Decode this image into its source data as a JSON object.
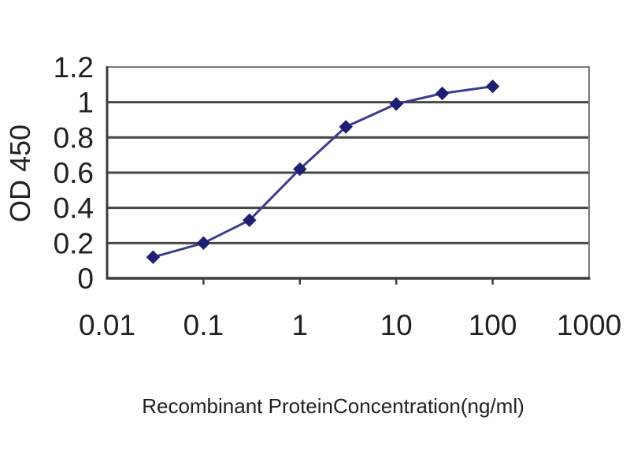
{
  "chart_data": {
    "type": "line",
    "title": "",
    "xlabel": "Recombinant ProteinConcentration(ng/ml)",
    "ylabel": "OD 450",
    "x_scale": "log",
    "xlim": [
      0.01,
      1000
    ],
    "ylim": [
      0,
      1.2
    ],
    "x": [
      0.03,
      0.1,
      0.3,
      1,
      3,
      10,
      30,
      100
    ],
    "y": [
      0.12,
      0.2,
      0.33,
      0.62,
      0.86,
      0.99,
      1.05,
      1.09
    ],
    "x_ticks": [
      0.01,
      0.1,
      1,
      10,
      100,
      1000
    ],
    "x_tick_labels": [
      "0.01",
      "0.1",
      "1",
      "10",
      "100",
      "1000"
    ],
    "y_ticks": [
      0,
      0.2,
      0.4,
      0.6,
      0.8,
      1,
      1.2
    ],
    "y_tick_labels": [
      "0",
      "0.2",
      "0.4",
      "0.6",
      "0.8",
      "1",
      "1.2"
    ],
    "grid": "horizontal",
    "legend": "none",
    "marker": "diamond",
    "colors": {
      "line": "#3c3c8e",
      "marker": "#1f1f72",
      "grid": "#474747",
      "axis": "#3d3d3d",
      "frame": "#7a7a7a",
      "text": "#212121",
      "background": "#ffffff"
    }
  }
}
